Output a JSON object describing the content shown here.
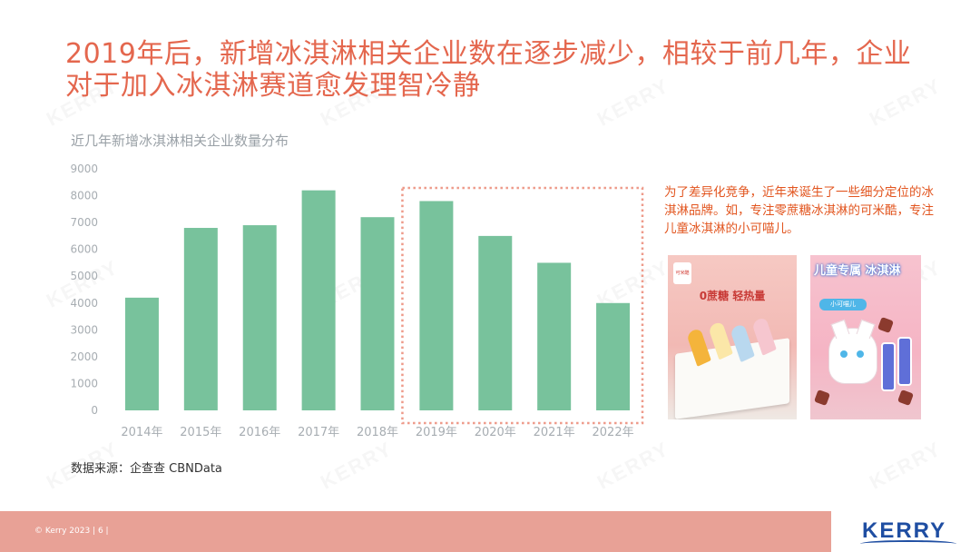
{
  "title": "2019年后，新增冰淇淋相关企业数在逐步减少，相较于前几年，企业对于加入冰淇淋赛道愈发理智冷静",
  "chart_data": {
    "type": "bar",
    "title": "近几年新增冰淇淋相关企业数量分布",
    "categories": [
      "2014年",
      "2015年",
      "2016年",
      "2017年",
      "2018年",
      "2019年",
      "2020年",
      "2021年",
      "2022年"
    ],
    "values": [
      4200,
      6800,
      6900,
      8200,
      7200,
      7800,
      6500,
      5500,
      4000
    ],
    "ylim": [
      0,
      9000
    ],
    "yticks": [
      0,
      1000,
      2000,
      3000,
      4000,
      5000,
      6000,
      7000,
      8000,
      9000
    ],
    "highlight_range": [
      "2019年",
      "2022年"
    ],
    "bar_color": "#78c29c",
    "grid": false
  },
  "source": "数据来源：企查查 CBNData",
  "side_text": "为了差异化竞争，近年来诞生了一些细分定位的冰淇淋品牌。如，专注零蔗糖冰淇淋的可米酷，专注儿童冰淇淋的小可喵儿。",
  "product1": {
    "logo": "可米酷",
    "headline": "0蔗糖 轻热量"
  },
  "product2": {
    "headline": "儿童专属 冰淇淋",
    "sub": "小可喵儿"
  },
  "footer": {
    "copyright": "© Kerry 2023 | 6 |",
    "brand": "KERRY",
    "watermark": "KERRY"
  },
  "colors": {
    "title": "#e4674e",
    "accent": "#e2551f",
    "bar": "#78c29c",
    "footer": "#e8a196",
    "brand": "#1f4ea2"
  }
}
